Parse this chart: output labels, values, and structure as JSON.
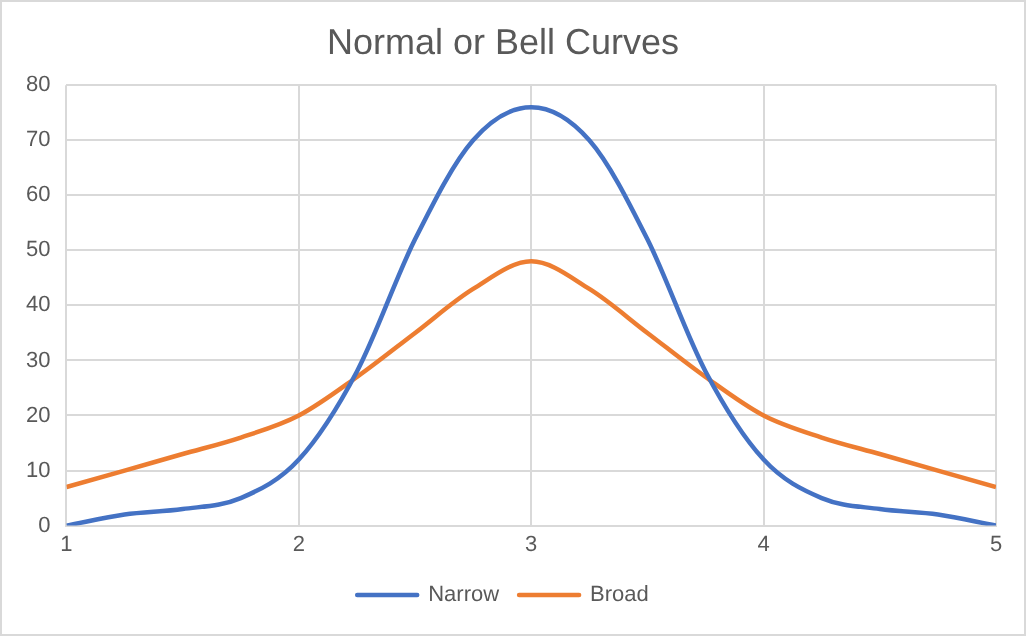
{
  "chart_data": {
    "type": "line",
    "title": "Normal or Bell Curves",
    "x": [
      1,
      1.25,
      1.5,
      1.75,
      2,
      2.25,
      2.5,
      2.75,
      3,
      3.25,
      3.5,
      3.75,
      4,
      4.25,
      4.5,
      4.75,
      5
    ],
    "series": [
      {
        "name": "Narrow",
        "color": "#4472c4",
        "values": [
          0,
          2,
          3,
          5,
          12,
          28,
          52,
          70,
          76,
          70,
          52,
          28,
          12,
          5,
          3,
          2,
          0
        ]
      },
      {
        "name": "Broad",
        "color": "#ed7d31",
        "values": [
          7,
          10,
          13,
          16,
          20,
          27,
          35,
          43,
          48,
          43,
          35,
          27,
          20,
          16,
          13,
          10,
          7
        ]
      }
    ],
    "xlim": [
      1,
      5
    ],
    "xticks": [
      1,
      2,
      3,
      4,
      5
    ],
    "ylim": [
      0,
      80
    ],
    "yticks": [
      0,
      10,
      20,
      30,
      40,
      50,
      60,
      70,
      80
    ],
    "grid": true,
    "legend": "bottom",
    "marker": "none",
    "line_style": "solid"
  }
}
